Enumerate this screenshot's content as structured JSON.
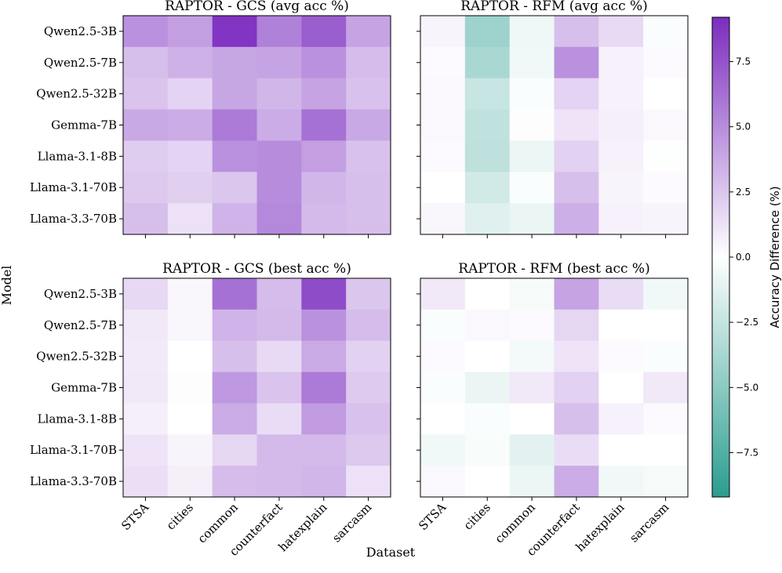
{
  "chart_data": {
    "type": "heatmap",
    "ylabel": "Model",
    "xlabel": "Dataset",
    "rows": [
      "Qwen2.5-3B",
      "Qwen2.5-7B",
      "Qwen2.5-32B",
      "Gemma-7B",
      "Llama-3.1-8B",
      "Llama-3.1-70B",
      "Llama-3.3-70B"
    ],
    "columns": [
      "STSA",
      "cities",
      "common",
      "counterfact",
      "hatexplain",
      "sarcasm"
    ],
    "colorbar": {
      "label": "Accuracy Difference (%)",
      "range": [
        -9.2,
        9.2
      ],
      "ticks": [
        -7.5,
        -5.0,
        -2.5,
        0.0,
        2.5,
        5.0,
        7.5
      ],
      "tick_labels": [
        "−7.5",
        "−5.0",
        "−2.5",
        "0.0",
        "2.5",
        "5.0",
        "7.5"
      ],
      "colors": {
        "negative": "#2a9d8f",
        "zero": "#ffffff",
        "positive": "#7b2cbf"
      }
    },
    "panels": [
      {
        "title": "RAPTOR - GCS (avg acc %)",
        "values": [
          [
            4.8,
            4.2,
            8.8,
            5.5,
            7.0,
            4.0
          ],
          [
            2.8,
            3.4,
            3.9,
            4.0,
            4.8,
            2.9
          ],
          [
            2.6,
            1.9,
            3.9,
            3.2,
            4.0,
            2.7
          ],
          [
            3.8,
            3.6,
            5.8,
            3.6,
            6.2,
            3.8
          ],
          [
            2.2,
            1.9,
            4.8,
            5.0,
            4.2,
            2.7
          ],
          [
            2.4,
            2.1,
            2.5,
            5.0,
            3.2,
            2.8
          ],
          [
            2.8,
            1.3,
            3.3,
            5.2,
            3.0,
            2.8
          ]
        ]
      },
      {
        "title": "RAPTOR - RFM (avg acc %)",
        "values": [
          [
            0.5,
            -4.2,
            -0.7,
            2.8,
            1.6,
            -0.2
          ],
          [
            0.2,
            -3.7,
            -0.6,
            4.8,
            0.6,
            0.2
          ],
          [
            0.3,
            -2.4,
            -0.2,
            1.9,
            0.6,
            0.0
          ],
          [
            0.3,
            -2.7,
            0.1,
            1.2,
            0.7,
            0.3
          ],
          [
            0.2,
            -2.8,
            -0.8,
            2.0,
            0.6,
            -0.1
          ],
          [
            0.0,
            -2.0,
            -0.2,
            2.8,
            0.5,
            0.2
          ],
          [
            0.4,
            -1.4,
            -0.9,
            3.5,
            0.6,
            0.5
          ]
        ]
      },
      {
        "title": "RAPTOR - GCS (best acc %)",
        "values": [
          [
            1.7,
            0.4,
            6.2,
            2.9,
            7.8,
            2.5
          ],
          [
            1.0,
            0.4,
            3.3,
            3.0,
            4.8,
            2.9
          ],
          [
            0.9,
            0.0,
            2.8,
            1.6,
            3.7,
            2.0
          ],
          [
            1.0,
            0.1,
            4.5,
            2.6,
            5.8,
            2.3
          ],
          [
            0.7,
            0.0,
            3.6,
            1.5,
            4.3,
            2.7
          ],
          [
            1.2,
            0.5,
            1.8,
            3.0,
            3.0,
            2.4
          ],
          [
            1.4,
            0.7,
            2.9,
            3.0,
            3.2,
            1.3
          ]
        ]
      },
      {
        "title": "RAPTOR - RFM (best acc %)",
        "values": [
          [
            1.0,
            0.0,
            -0.4,
            4.0,
            1.5,
            -0.6
          ],
          [
            -0.2,
            0.3,
            0.2,
            1.8,
            0.0,
            0.0
          ],
          [
            0.2,
            0.0,
            -0.5,
            1.2,
            0.2,
            -0.2
          ],
          [
            -0.2,
            -0.9,
            1.0,
            2.0,
            0.0,
            1.0
          ],
          [
            0.0,
            -0.2,
            0.0,
            2.8,
            0.6,
            0.2
          ],
          [
            -0.6,
            -0.3,
            -1.2,
            1.5,
            0.0,
            0.0
          ],
          [
            0.3,
            0.0,
            -0.8,
            3.6,
            -0.6,
            -0.4
          ]
        ]
      }
    ]
  }
}
